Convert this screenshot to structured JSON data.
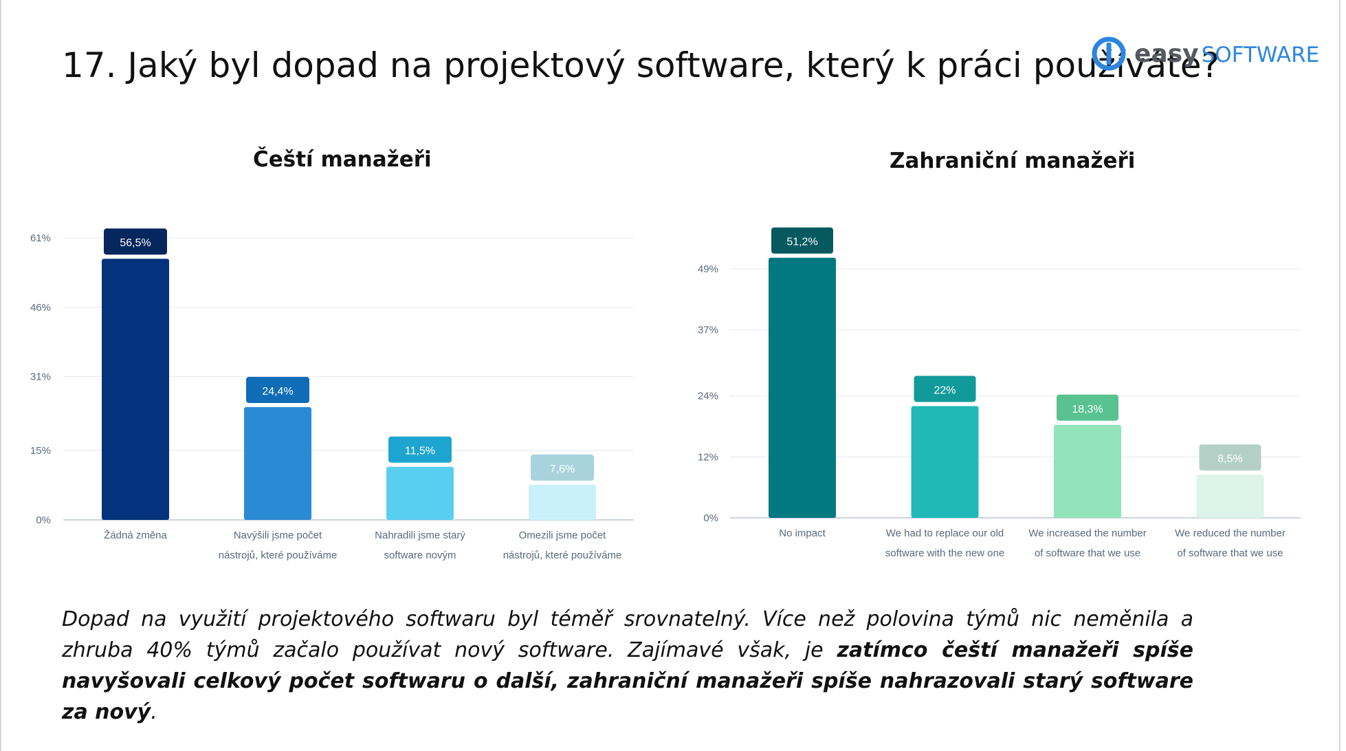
{
  "page": {
    "title": "17. Jaký byl dopad na projektový software, který k práci používáte?",
    "logo": {
      "easy": "easy",
      "software": "SOFTWARE",
      "accent": "#2e86de"
    }
  },
  "charts": {
    "left": {
      "title": "Čeští manažeři"
    },
    "right": {
      "title": "Zahraniční  manažeři"
    }
  },
  "chart_data": [
    {
      "type": "bar",
      "title": "Čeští manažeři",
      "categories": [
        [
          "Žádná změna"
        ],
        [
          "Navýšili jsme počet",
          "nástrojů, které používáme"
        ],
        [
          "Nahradili jsme starý",
          "software novým"
        ],
        [
          "Omezili jsme počet",
          "nástrojů, které používáme"
        ]
      ],
      "values": [
        56.5,
        24.4,
        11.5,
        7.6
      ],
      "value_labels": [
        "56,5%",
        "24,4%",
        "11,5%",
        "7,6%"
      ],
      "bar_colors": [
        "#04327c",
        "#2b8ad4",
        "#59cef0",
        "#c9f1fb"
      ],
      "label_colors": [
        "#06265e",
        "#106cb6",
        "#1ea5cf",
        "#a8d3dd"
      ],
      "yticks": [
        0,
        15,
        31,
        46,
        61
      ],
      "ytick_labels": [
        "0%",
        "15%",
        "31%",
        "46%",
        "61%"
      ],
      "ylim": [
        0,
        61
      ],
      "grid": true
    },
    {
      "type": "bar",
      "title": "Zahraniční  manažeři",
      "categories": [
        [
          "No impact"
        ],
        [
          "We had to replace our old",
          "software with the new one"
        ],
        [
          "We increased the number",
          "of software that we use"
        ],
        [
          "We reduced the number",
          "of software that we use"
        ]
      ],
      "values": [
        51.2,
        22,
        18.3,
        8.5
      ],
      "value_labels": [
        "51,2%",
        "22%",
        "18,3%",
        "8,5%"
      ],
      "bar_colors": [
        "#027881",
        "#21b8b8",
        "#92e3ba",
        "#dcf4ea"
      ],
      "label_colors": [
        "#05595f",
        "#119a9a",
        "#58c391",
        "#b4d0c6"
      ],
      "yticks": [
        0,
        12,
        24,
        37,
        49
      ],
      "ytick_labels": [
        "0%",
        "12%",
        "24%",
        "37%",
        "49%"
      ],
      "ylim": [
        0,
        49
      ],
      "grid": true
    }
  ],
  "caption": {
    "part1": "Dopad na využití projektového softwaru byl téměř srovnatelný. Více než polovina týmů nic neměnila a zhruba 40% týmů začalo používat nový software. Zajímavé však, je ",
    "bold": "zatímco čeští manažeři spíše navyšovali celkový počet softwaru o další, zahraniční manažeři spíše nahrazovali starý software za nový",
    "part3": "."
  }
}
